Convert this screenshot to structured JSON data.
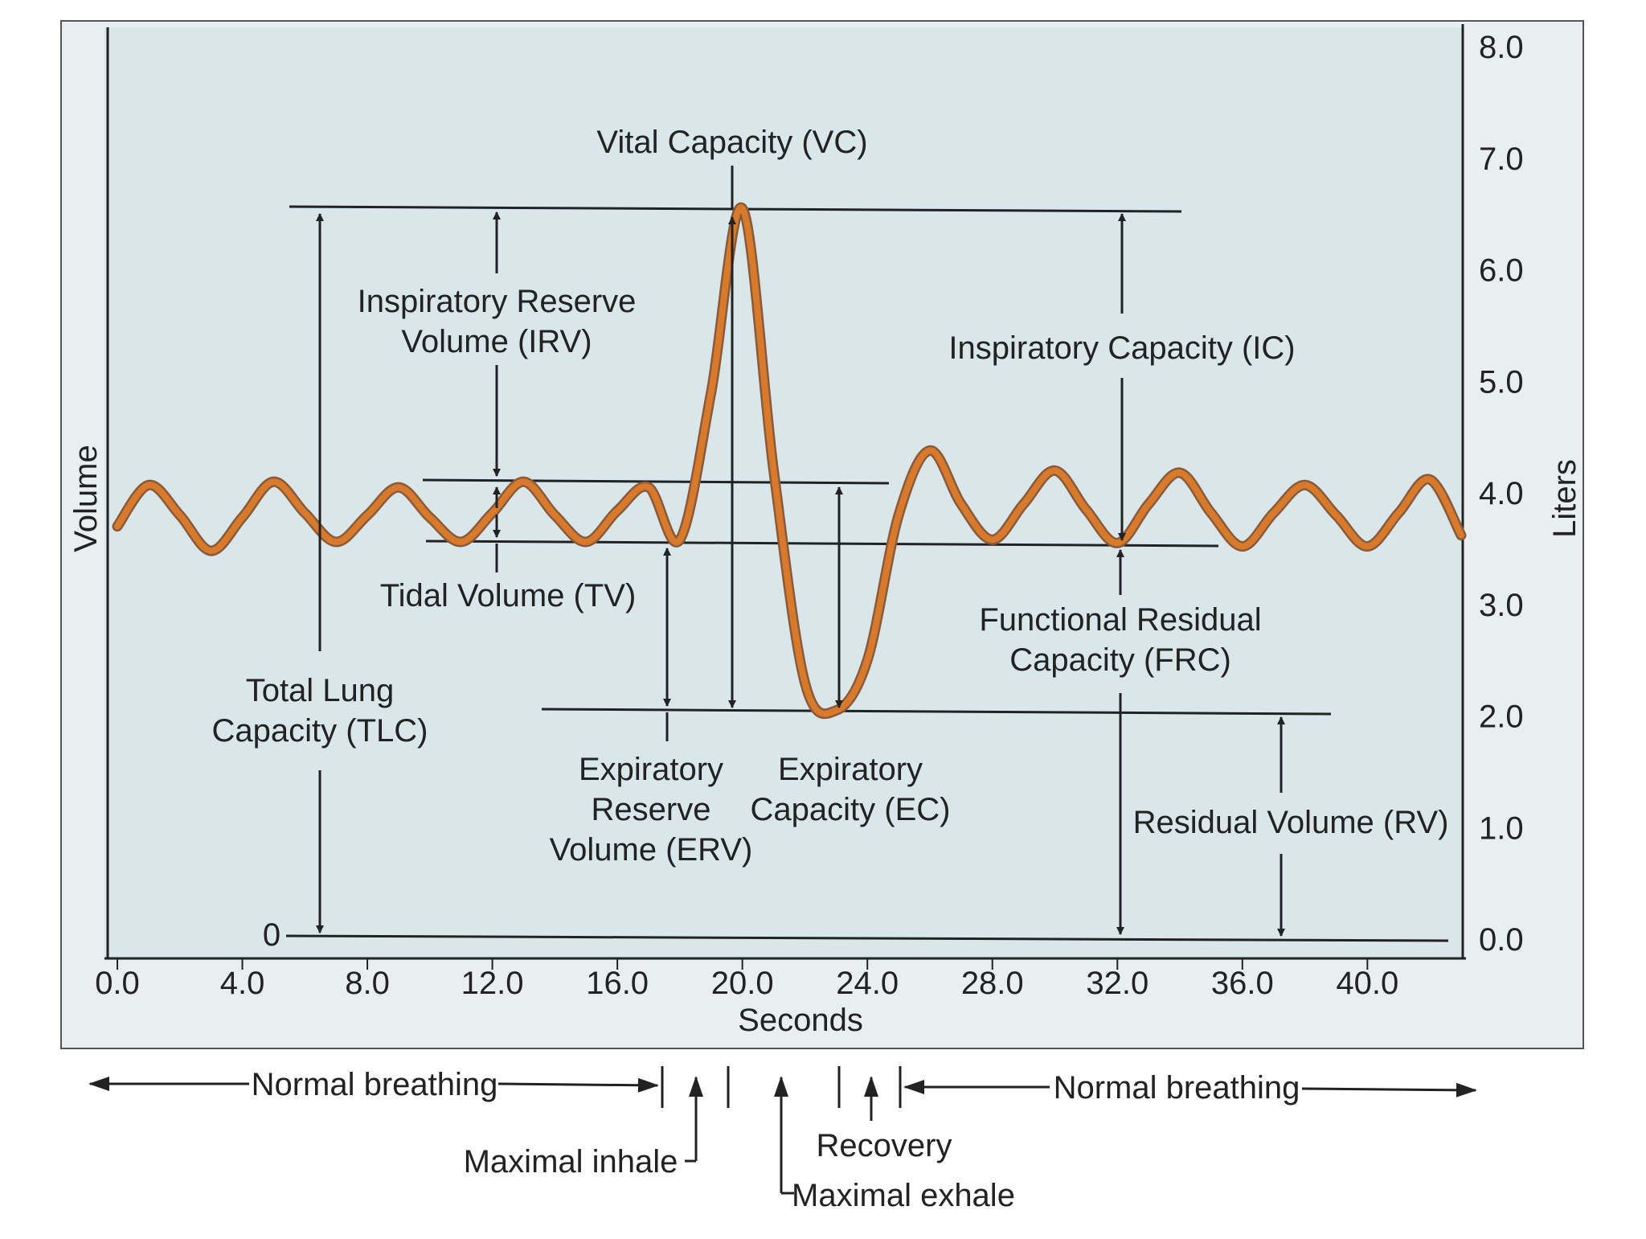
{
  "colors": {
    "plot_background": "#d9e6ea",
    "trace": "#d77a2c",
    "trace_shadow": "#8a5a3a",
    "lines": "#222222"
  },
  "axes": {
    "x_title": "Seconds",
    "y_left_title": "Volume",
    "y_right_title": "Liters",
    "y_left_zero_label": "0",
    "x_ticks": [
      "0.0",
      "4.0",
      "8.0",
      "12.0",
      "16.0",
      "20.0",
      "24.0",
      "28.0",
      "32.0",
      "36.0",
      "40.0"
    ],
    "y_ticks": [
      "0.0",
      "1.0",
      "2.0",
      "3.0",
      "4.0",
      "5.0",
      "6.0",
      "7.0",
      "8.0"
    ]
  },
  "labels": {
    "vc": "Vital Capacity (VC)",
    "irv_1": "Inspiratory Reserve",
    "irv_2": "Volume (IRV)",
    "ic": "Inspiratory Capacity (IC)",
    "tv": "Tidal Volume (TV)",
    "frc_1": "Functional Residual",
    "frc_2": "Capacity (FRC)",
    "tlc_1": "Total Lung",
    "tlc_2": "Capacity (TLC)",
    "erv_1": "Expiratory",
    "erv_2": "Reserve",
    "erv_3": "Volume (ERV)",
    "ec_1": "Expiratory",
    "ec_2": "Capacity (EC)",
    "rv": "Residual Volume (RV)"
  },
  "phases": {
    "normal_breathing_left": "Normal breathing",
    "normal_breathing_right": "Normal breathing",
    "maximal_inhale": "Maximal inhale",
    "maximal_exhale": "Maximal exhale",
    "recovery": "Recovery"
  },
  "chart_data": {
    "type": "line",
    "xlabel": "Seconds",
    "ylabel": "Liters",
    "xlim": [
      0,
      43
    ],
    "ylim": [
      0,
      8
    ],
    "grid": false,
    "series": [
      {
        "x": [
          0,
          1,
          2,
          3,
          4,
          5,
          6,
          7,
          8,
          9,
          10,
          11,
          12,
          13,
          14,
          15,
          16,
          17,
          18,
          19,
          20,
          21,
          22,
          23,
          24,
          25,
          26,
          27,
          28,
          29,
          30,
          31,
          32,
          33,
          34,
          35,
          36,
          37,
          38,
          39,
          40,
          41,
          42,
          43
        ],
        "y": [
          3.7,
          4.07,
          3.8,
          3.48,
          3.78,
          4.1,
          3.82,
          3.56,
          3.8,
          4.05,
          3.78,
          3.56,
          3.82,
          4.1,
          3.8,
          3.56,
          3.84,
          4.05,
          3.58,
          4.9,
          6.55,
          4.2,
          2.3,
          2.05,
          2.5,
          3.8,
          4.38,
          3.9,
          3.58,
          3.9,
          4.2,
          3.85,
          3.55,
          3.9,
          4.18,
          3.82,
          3.52,
          3.82,
          4.07,
          3.8,
          3.52,
          3.82,
          4.12,
          3.62
        ]
      }
    ],
    "reference_levels": {
      "maximal_inhale": 6.5,
      "tidal_peak": 4.1,
      "functional_residual": 3.55,
      "maximal_exhale": 2.05,
      "zero": 0.0
    }
  }
}
